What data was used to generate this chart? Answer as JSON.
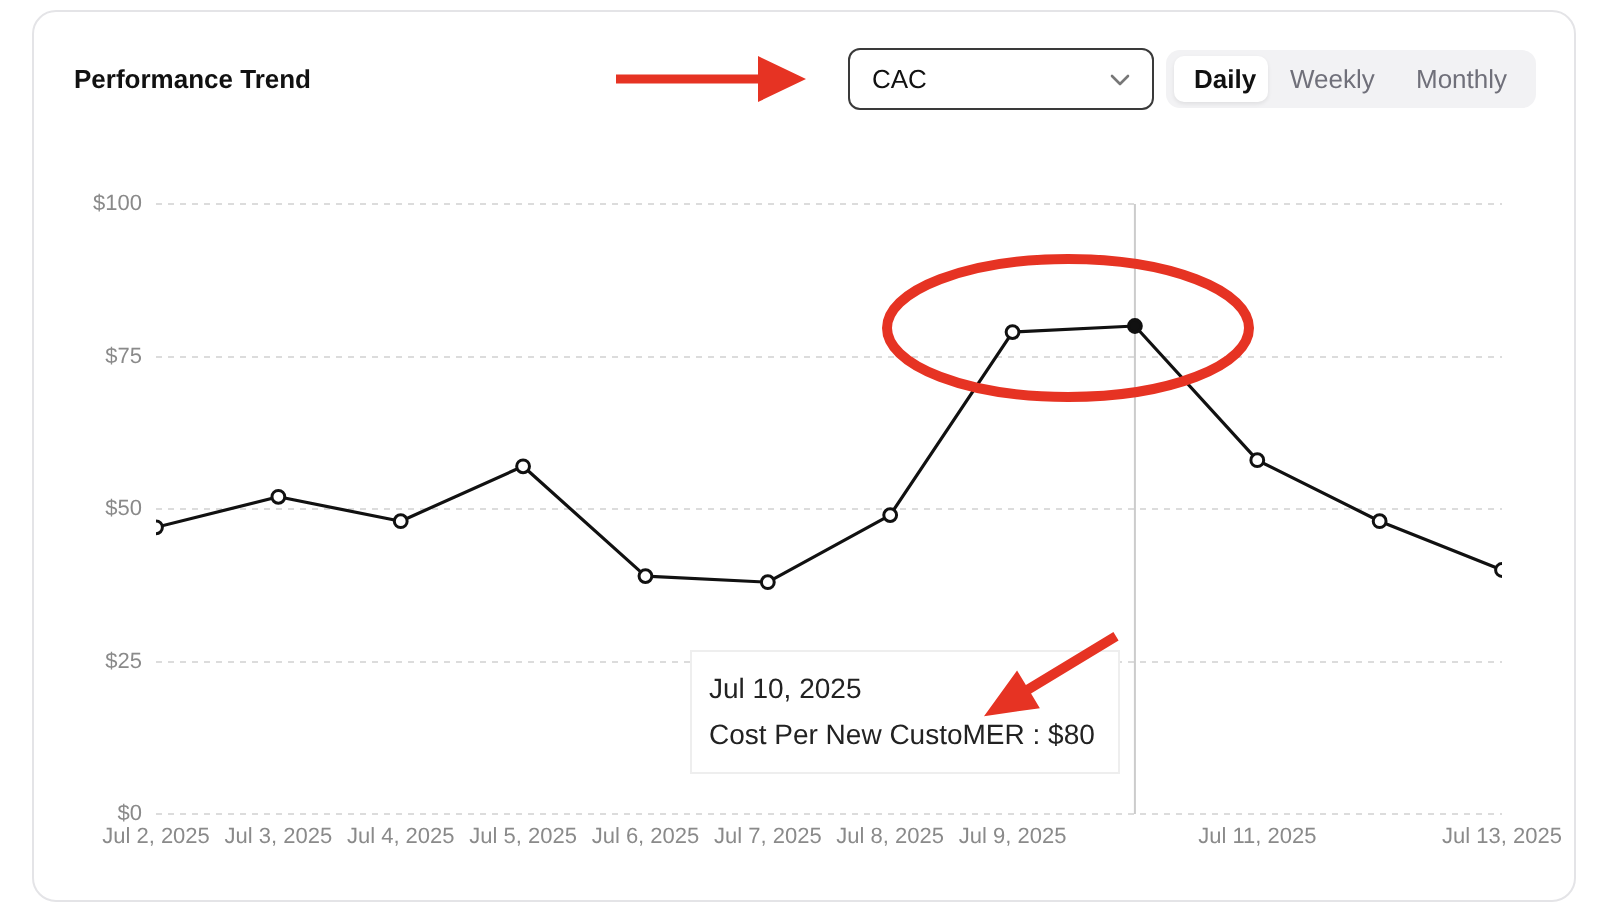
{
  "chart_data": {
    "type": "line",
    "title": "Performance Trend",
    "x": [
      "2025-07-02",
      "2025-07-03",
      "2025-07-04",
      "2025-07-05",
      "2025-07-06",
      "2025-07-07",
      "2025-07-08",
      "2025-07-09",
      "2025-07-10",
      "2025-07-11",
      "2025-07-12",
      "2025-07-13"
    ],
    "series": [
      {
        "color": "#111111",
        "values": [
          47,
          52,
          48,
          57,
          39,
          38,
          49,
          79,
          80,
          58,
          48,
          40
        ]
      }
    ],
    "xlim": [
      "2025-07-02",
      "2025-07-13"
    ],
    "xticks": [
      {
        "value": "2025-07-02",
        "label": "Jul 2, 2025"
      },
      {
        "value": "2025-07-03",
        "label": "Jul 3, 2025"
      },
      {
        "value": "2025-07-04",
        "label": "Jul 4, 2025"
      },
      {
        "value": "2025-07-05",
        "label": "Jul 5, 2025"
      },
      {
        "value": "2025-07-06",
        "label": "Jul 6, 2025"
      },
      {
        "value": "2025-07-07",
        "label": "Jul 7, 2025"
      },
      {
        "value": "2025-07-08",
        "label": "Jul 8, 2025"
      },
      {
        "value": "2025-07-09",
        "label": "Jul 9, 2025"
      },
      {
        "value": "2025-07-11",
        "label": "Jul 11, 2025"
      },
      {
        "value": "2025-07-13",
        "label": "Jul 13, 2025"
      }
    ],
    "ylim": [
      0,
      100
    ],
    "yticks": [
      {
        "value": 0,
        "label": "$0"
      },
      {
        "value": 25,
        "label": "$25"
      },
      {
        "value": 50,
        "label": "$50"
      },
      {
        "value": 75,
        "label": "$75"
      },
      {
        "value": 100,
        "label": "$100"
      }
    ],
    "grid": "y",
    "marker": "circle",
    "line_style": "solid",
    "ref_lines": [
      {
        "axis": "x",
        "value": "2025-07-10",
        "color": "#cccccc"
      }
    ],
    "annotations": [
      "CAC",
      "Daily",
      "Weekly",
      "Monthly",
      "Jul 10, 2025",
      "Cost Per New CustoMER : $80"
    ]
  }
}
